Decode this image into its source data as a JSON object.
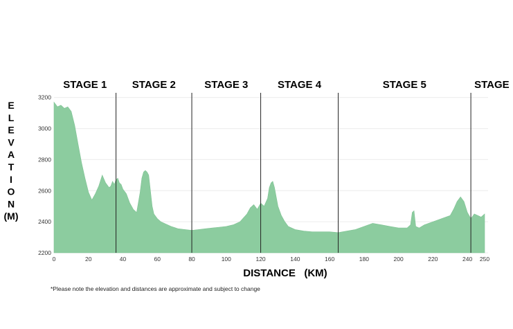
{
  "chart_data": {
    "type": "area",
    "title": "",
    "xlabel": "DISTANCE   (KM)",
    "ylabel": "ELEVATION (M)",
    "ylabel_letters": [
      "E",
      "L",
      "E",
      "V",
      "A",
      "T",
      "I",
      "O",
      "N",
      "(M)"
    ],
    "xlim": [
      0,
      252
    ],
    "ylim": [
      2200,
      3230
    ],
    "x_ticks": [
      0,
      20,
      40,
      60,
      80,
      100,
      120,
      140,
      160,
      180,
      200,
      220,
      240,
      250
    ],
    "y_ticks": [
      2200,
      2400,
      2600,
      2800,
      3000,
      3200
    ],
    "grid": true,
    "fill_color": "#8ccc9f",
    "stages": [
      {
        "label": "STAGE 1",
        "start": 0,
        "end": 36
      },
      {
        "label": "STAGE 2",
        "start": 36,
        "end": 80
      },
      {
        "label": "STAGE 3",
        "start": 80,
        "end": 120
      },
      {
        "label": "STAGE 4",
        "start": 120,
        "end": 165
      },
      {
        "label": "STAGE 5",
        "start": 165,
        "end": 242
      },
      {
        "label": "STAGE",
        "start": 242,
        "end": 252
      }
    ],
    "stage_boundaries": [
      36,
      80,
      120,
      165,
      242
    ],
    "profile": {
      "x": [
        0,
        2,
        4,
        6,
        8,
        10,
        12,
        14,
        16,
        18,
        20,
        22,
        24,
        26,
        28,
        30,
        32,
        33,
        34,
        35,
        36,
        37,
        38,
        39,
        40,
        42,
        44,
        46,
        48,
        50,
        51,
        52,
        53,
        54,
        55,
        56,
        57,
        58,
        60,
        62,
        64,
        68,
        72,
        76,
        80,
        84,
        88,
        92,
        96,
        100,
        104,
        108,
        112,
        114,
        116,
        118,
        120,
        122,
        124,
        125,
        126,
        127,
        128,
        129,
        130,
        132,
        134,
        136,
        140,
        145,
        150,
        155,
        160,
        165,
        170,
        175,
        180,
        185,
        190,
        195,
        200,
        205,
        207,
        208,
        209,
        210,
        212,
        215,
        220,
        225,
        230,
        232,
        234,
        236,
        238,
        240,
        242,
        244,
        246,
        248,
        250
      ],
      "y": [
        3170,
        3140,
        3150,
        3130,
        3140,
        3110,
        3020,
        2900,
        2780,
        2680,
        2590,
        2540,
        2580,
        2630,
        2700,
        2650,
        2620,
        2630,
        2660,
        2640,
        2670,
        2680,
        2650,
        2640,
        2610,
        2580,
        2520,
        2480,
        2460,
        2590,
        2680,
        2720,
        2730,
        2720,
        2700,
        2600,
        2500,
        2450,
        2420,
        2400,
        2390,
        2370,
        2355,
        2350,
        2345,
        2350,
        2355,
        2360,
        2365,
        2370,
        2380,
        2400,
        2450,
        2490,
        2510,
        2480,
        2520,
        2500,
        2550,
        2620,
        2650,
        2660,
        2620,
        2560,
        2500,
        2440,
        2400,
        2370,
        2350,
        2340,
        2335,
        2335,
        2335,
        2330,
        2340,
        2350,
        2370,
        2390,
        2380,
        2370,
        2360,
        2360,
        2380,
        2460,
        2470,
        2370,
        2360,
        2380,
        2400,
        2420,
        2440,
        2480,
        2530,
        2560,
        2530,
        2460,
        2420,
        2450,
        2440,
        2430,
        2450
      ]
    }
  },
  "footnote": "*Please note the elevation and distances are approximate and subject to change"
}
